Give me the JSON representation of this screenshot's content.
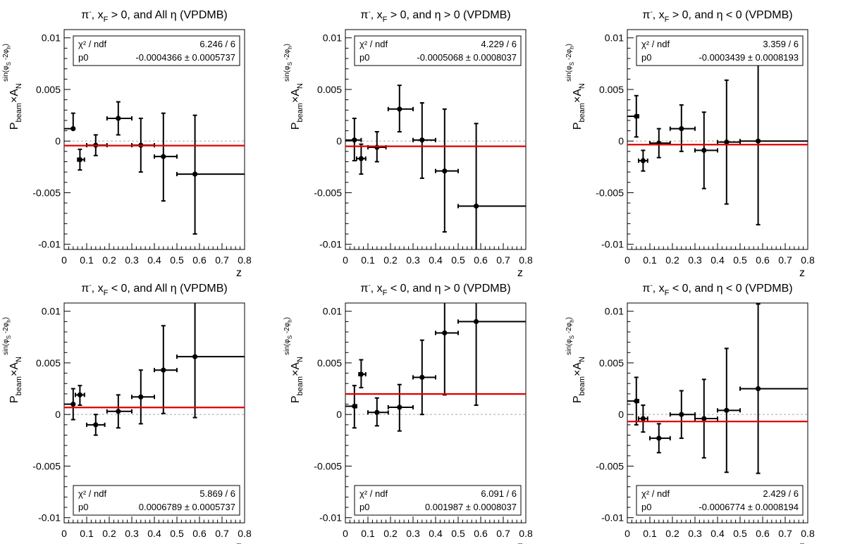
{
  "chart_data": [
    {
      "type": "scatter",
      "title": {
        "particle": "π",
        "charge": "-",
        "xf_var": "x",
        "xf_sub": "F",
        "xf_cond": " > 0, and All η (VPDMB)"
      },
      "xlabel": "z",
      "ylabel": {
        "pre": "P",
        "pre_sub": "beam",
        "mid": "×A",
        "sub": "N",
        "sup": "sin(φ -2φ )",
        "sup_s": "S",
        "sup_h": "h"
      },
      "xlim": [
        0,
        0.8
      ],
      "ylim": [
        -0.0105,
        0.0108
      ],
      "xticks": [
        0,
        0.1,
        0.2,
        0.3,
        0.4,
        0.5,
        0.6,
        0.7,
        0.8
      ],
      "xtick_labels": [
        "0",
        "0.1",
        "0.2",
        "0.3",
        "0.4",
        "0.5",
        "0.6",
        "0.7",
        "0.8"
      ],
      "yticks": [
        -0.01,
        -0.005,
        0,
        0.005,
        0.01
      ],
      "ytick_labels": [
        "-0.01",
        "-0.005",
        "0",
        "0.005",
        "0.01"
      ],
      "points": [
        {
          "x": 0.04,
          "xlo": 0.0,
          "xhi": 0.04,
          "y": 0.0012,
          "ylo": 0.0027,
          "yhi": 0.0012
        },
        {
          "x": 0.07,
          "xlo": 0.06,
          "xhi": 0.09,
          "y": -0.0018,
          "ylo": -0.0028,
          "yhi": -0.0008
        },
        {
          "x": 0.14,
          "xlo": 0.1,
          "xhi": 0.19,
          "y": -0.0004,
          "ylo": -0.0014,
          "yhi": 0.0006
        },
        {
          "x": 0.24,
          "xlo": 0.19,
          "xhi": 0.3,
          "y": 0.0022,
          "ylo": 0.0006,
          "yhi": 0.0038
        },
        {
          "x": 0.34,
          "xlo": 0.3,
          "xhi": 0.4,
          "y": -0.0004,
          "ylo": -0.003,
          "yhi": 0.0022
        },
        {
          "x": 0.44,
          "xlo": 0.4,
          "xhi": 0.5,
          "y": -0.0015,
          "ylo": -0.0058,
          "yhi": 0.0027
        },
        {
          "x": 0.58,
          "xlo": 0.5,
          "xhi": 0.8,
          "y": -0.0032,
          "ylo": -0.009,
          "yhi": 0.0025
        }
      ],
      "fit": {
        "p0": -0.0004366
      },
      "stats": {
        "position": "top",
        "chi2_label": "χ² / ndf",
        "chi2_value": "6.246 / 6",
        "p0_label": "p0",
        "p0_value": "-0.0004366 ± 0.0005737"
      }
    },
    {
      "type": "scatter",
      "title": {
        "particle": "π",
        "charge": "-",
        "xf_var": "x",
        "xf_sub": "F",
        "xf_cond": " > 0, and η > 0 (VPDMB)"
      },
      "xlabel": "z",
      "ylabel": {
        "pre": "P",
        "pre_sub": "beam",
        "mid": "×A",
        "sub": "N",
        "sup": "sin(φ -2φ )",
        "sup_s": "S",
        "sup_h": "h"
      },
      "xlim": [
        0,
        0.8
      ],
      "ylim": [
        -0.0105,
        0.0108
      ],
      "xticks": [
        0,
        0.1,
        0.2,
        0.3,
        0.4,
        0.5,
        0.6,
        0.7,
        0.8
      ],
      "xtick_labels": [
        "0",
        "0.1",
        "0.2",
        "0.3",
        "0.4",
        "0.5",
        "0.6",
        "0.7",
        "0.8"
      ],
      "yticks": [
        -0.01,
        -0.005,
        0,
        0.005,
        0.01
      ],
      "ytick_labels": [
        "-0.01",
        "-0.005",
        "0",
        "0.005",
        "0.01"
      ],
      "points": [
        {
          "x": 0.04,
          "xlo": 0.0,
          "xhi": 0.07,
          "y": 0.0001,
          "ylo": -0.0019,
          "yhi": 0.0022
        },
        {
          "x": 0.07,
          "xlo": 0.05,
          "xhi": 0.09,
          "y": -0.0017,
          "ylo": -0.0032,
          "yhi": -0.0003
        },
        {
          "x": 0.14,
          "xlo": 0.1,
          "xhi": 0.18,
          "y": -0.0006,
          "ylo": -0.002,
          "yhi": 0.0009
        },
        {
          "x": 0.24,
          "xlo": 0.19,
          "xhi": 0.3,
          "y": 0.0031,
          "ylo": 0.0009,
          "yhi": 0.0054
        },
        {
          "x": 0.34,
          "xlo": 0.3,
          "xhi": 0.4,
          "y": 0.0001,
          "ylo": -0.0036,
          "yhi": 0.0037
        },
        {
          "x": 0.44,
          "xlo": 0.4,
          "xhi": 0.5,
          "y": -0.0029,
          "ylo": -0.0088,
          "yhi": 0.0031
        },
        {
          "x": 0.58,
          "xlo": 0.5,
          "xhi": 0.8,
          "y": -0.0063,
          "ylo": -0.0105,
          "yhi": 0.0017
        }
      ],
      "fit": {
        "p0": -0.0005068
      },
      "stats": {
        "position": "top",
        "chi2_label": "χ² / ndf",
        "chi2_value": "4.229 / 6",
        "p0_label": "p0",
        "p0_value": "-0.0005068 ± 0.0008037"
      }
    },
    {
      "type": "scatter",
      "title": {
        "particle": "π",
        "charge": "-",
        "xf_var": "x",
        "xf_sub": "F",
        "xf_cond": " > 0, and η < 0 (VPDMB)"
      },
      "xlabel": "z",
      "ylabel": {
        "pre": "P",
        "pre_sub": "beam",
        "mid": "×A",
        "sub": "N",
        "sup": "sin(φ -2φ )",
        "sup_s": "S",
        "sup_h": "h"
      },
      "xlim": [
        0,
        0.8
      ],
      "ylim": [
        -0.0105,
        0.0108
      ],
      "xticks": [
        0,
        0.1,
        0.2,
        0.3,
        0.4,
        0.5,
        0.6,
        0.7,
        0.8
      ],
      "xtick_labels": [
        "0",
        "0.1",
        "0.2",
        "0.3",
        "0.4",
        "0.5",
        "0.6",
        "0.7",
        "0.8"
      ],
      "yticks": [
        -0.01,
        -0.005,
        0,
        0.005,
        0.01
      ],
      "ytick_labels": [
        "-0.01",
        "-0.005",
        "0",
        "0.005",
        "0.01"
      ],
      "points": [
        {
          "x": 0.04,
          "xlo": 0.0,
          "xhi": 0.05,
          "y": 0.0024,
          "ylo": 0.0004,
          "yhi": 0.0044
        },
        {
          "x": 0.07,
          "xlo": 0.05,
          "xhi": 0.09,
          "y": -0.0019,
          "ylo": -0.0029,
          "yhi": -0.0009
        },
        {
          "x": 0.14,
          "xlo": 0.1,
          "xhi": 0.19,
          "y": -0.0002,
          "ylo": -0.0016,
          "yhi": 0.0012
        },
        {
          "x": 0.24,
          "xlo": 0.19,
          "xhi": 0.3,
          "y": 0.0012,
          "ylo": -0.001,
          "yhi": 0.0035
        },
        {
          "x": 0.34,
          "xlo": 0.3,
          "xhi": 0.4,
          "y": -0.0009,
          "ylo": -0.0046,
          "yhi": 0.0028
        },
        {
          "x": 0.44,
          "xlo": 0.4,
          "xhi": 0.5,
          "y": -0.0001,
          "ylo": -0.0061,
          "yhi": 0.0059
        },
        {
          "x": 0.58,
          "xlo": 0.5,
          "xhi": 0.8,
          "y": 0.0,
          "ylo": -0.0081,
          "yhi": 0.0082
        }
      ],
      "fit": {
        "p0": -0.0003439
      },
      "stats": {
        "position": "top",
        "chi2_label": "χ² / ndf",
        "chi2_value": "3.359 / 6",
        "p0_label": "p0",
        "p0_value": "-0.0003439 ± 0.0008193"
      }
    },
    {
      "type": "scatter",
      "title": {
        "particle": "π",
        "charge": "-",
        "xf_var": "x",
        "xf_sub": "F",
        "xf_cond": " < 0, and All η (VPDMB)"
      },
      "xlabel": "z",
      "ylabel": {
        "pre": "P",
        "pre_sub": "beam",
        "mid": "×A",
        "sub": "N",
        "sup": "sin(φ -2φ )",
        "sup_s": "S",
        "sup_h": "h"
      },
      "xlim": [
        0,
        0.8
      ],
      "ylim": [
        -0.0105,
        0.0108
      ],
      "xticks": [
        0,
        0.1,
        0.2,
        0.3,
        0.4,
        0.5,
        0.6,
        0.7,
        0.8
      ],
      "xtick_labels": [
        "0",
        "0.1",
        "0.2",
        "0.3",
        "0.4",
        "0.5",
        "0.6",
        "0.7",
        "0.8"
      ],
      "yticks": [
        -0.01,
        -0.005,
        0,
        0.005,
        0.01
      ],
      "ytick_labels": [
        "-0.01",
        "-0.005",
        "0",
        "0.005",
        "0.01"
      ],
      "points": [
        {
          "x": 0.04,
          "xlo": 0.0,
          "xhi": 0.04,
          "y": 0.001,
          "ylo": -0.0005,
          "yhi": 0.0025
        },
        {
          "x": 0.07,
          "xlo": 0.05,
          "xhi": 0.09,
          "y": 0.0019,
          "ylo": 0.0009,
          "yhi": 0.0028
        },
        {
          "x": 0.14,
          "xlo": 0.1,
          "xhi": 0.18,
          "y": -0.001,
          "ylo": -0.002,
          "yhi": 0.0
        },
        {
          "x": 0.24,
          "xlo": 0.19,
          "xhi": 0.3,
          "y": 0.0003,
          "ylo": -0.0013,
          "yhi": 0.0019
        },
        {
          "x": 0.34,
          "xlo": 0.3,
          "xhi": 0.4,
          "y": 0.0017,
          "ylo": -0.0009,
          "yhi": 0.0043
        },
        {
          "x": 0.44,
          "xlo": 0.4,
          "xhi": 0.5,
          "y": 0.0043,
          "ylo": 0.0001,
          "yhi": 0.0086
        },
        {
          "x": 0.58,
          "xlo": 0.5,
          "xhi": 0.8,
          "y": 0.0056,
          "ylo": -0.0003,
          "yhi": 0.0108
        }
      ],
      "fit": {
        "p0": 0.0006789
      },
      "stats": {
        "position": "bottom",
        "chi2_label": "χ² / ndf",
        "chi2_value": "5.869 / 6",
        "p0_label": "p0",
        "p0_value": "0.0006789 ± 0.0005737"
      }
    },
    {
      "type": "scatter",
      "title": {
        "particle": "π",
        "charge": "-",
        "xf_var": "x",
        "xf_sub": "F",
        "xf_cond": " < 0, and η > 0 (VPDMB)"
      },
      "xlabel": "z",
      "ylabel": {
        "pre": "P",
        "pre_sub": "beam",
        "mid": "×A",
        "sub": "N",
        "sup": "sin(φ -2φ )",
        "sup_s": "S",
        "sup_h": "h"
      },
      "xlim": [
        0,
        0.8
      ],
      "ylim": [
        -0.0105,
        0.0108
      ],
      "xticks": [
        0,
        0.1,
        0.2,
        0.3,
        0.4,
        0.5,
        0.6,
        0.7,
        0.8
      ],
      "xtick_labels": [
        "0",
        "0.1",
        "0.2",
        "0.3",
        "0.4",
        "0.5",
        "0.6",
        "0.7",
        "0.8"
      ],
      "yticks": [
        -0.01,
        -0.005,
        0,
        0.005,
        0.01
      ],
      "ytick_labels": [
        "-0.01",
        "-0.005",
        "0",
        "0.005",
        "0.01"
      ],
      "points": [
        {
          "x": 0.04,
          "xlo": 0.0,
          "xhi": 0.05,
          "y": 0.0008,
          "ylo": -0.0013,
          "yhi": 0.0028
        },
        {
          "x": 0.07,
          "xlo": 0.06,
          "xhi": 0.09,
          "y": 0.0039,
          "ylo": 0.0026,
          "yhi": 0.0053
        },
        {
          "x": 0.14,
          "xlo": 0.1,
          "xhi": 0.19,
          "y": 0.0002,
          "ylo": -0.0011,
          "yhi": 0.0016
        },
        {
          "x": 0.24,
          "xlo": 0.19,
          "xhi": 0.3,
          "y": 0.0007,
          "ylo": -0.0016,
          "yhi": 0.0029
        },
        {
          "x": 0.34,
          "xlo": 0.3,
          "xhi": 0.4,
          "y": 0.0036,
          "ylo": 0.0,
          "yhi": 0.0072
        },
        {
          "x": 0.44,
          "xlo": 0.4,
          "xhi": 0.5,
          "y": 0.0079,
          "ylo": 0.0019,
          "yhi": 0.0108
        },
        {
          "x": 0.58,
          "xlo": 0.5,
          "xhi": 0.8,
          "y": 0.009,
          "ylo": 0.0009,
          "yhi": 0.0108
        }
      ],
      "fit": {
        "p0": 0.001987
      },
      "stats": {
        "position": "bottom",
        "chi2_label": "χ² / ndf",
        "chi2_value": "6.091 / 6",
        "p0_label": "p0",
        "p0_value": "0.001987 ± 0.0008037"
      }
    },
    {
      "type": "scatter",
      "title": {
        "particle": "π",
        "charge": "-",
        "xf_var": "x",
        "xf_sub": "F",
        "xf_cond": " < 0, and η < 0 (VPDMB)"
      },
      "xlabel": "z",
      "ylabel": {
        "pre": "P",
        "pre_sub": "beam",
        "mid": "×A",
        "sub": "N",
        "sup": "sin(φ -2φ )",
        "sup_s": "S",
        "sup_h": "h"
      },
      "xlim": [
        0,
        0.8
      ],
      "ylim": [
        -0.0105,
        0.0108
      ],
      "xticks": [
        0,
        0.1,
        0.2,
        0.3,
        0.4,
        0.5,
        0.6,
        0.7,
        0.8
      ],
      "xtick_labels": [
        "0",
        "0.1",
        "0.2",
        "0.3",
        "0.4",
        "0.5",
        "0.6",
        "0.7",
        "0.8"
      ],
      "yticks": [
        -0.01,
        -0.005,
        0,
        0.005,
        0.01
      ],
      "ytick_labels": [
        "-0.01",
        "-0.005",
        "0",
        "0.005",
        "0.01"
      ],
      "points": [
        {
          "x": 0.04,
          "xlo": 0.0,
          "xhi": 0.05,
          "y": 0.0013,
          "ylo": -0.001,
          "yhi": 0.0036
        },
        {
          "x": 0.07,
          "xlo": 0.05,
          "xhi": 0.09,
          "y": -0.0004,
          "ylo": -0.0017,
          "yhi": 0.0009
        },
        {
          "x": 0.14,
          "xlo": 0.1,
          "xhi": 0.19,
          "y": -0.0023,
          "ylo": -0.0037,
          "yhi": -0.0009
        },
        {
          "x": 0.24,
          "xlo": 0.19,
          "xhi": 0.3,
          "y": 0.0,
          "ylo": -0.0023,
          "yhi": 0.0023
        },
        {
          "x": 0.34,
          "xlo": 0.3,
          "xhi": 0.4,
          "y": -0.0004,
          "ylo": -0.0042,
          "yhi": 0.0034
        },
        {
          "x": 0.44,
          "xlo": 0.4,
          "xhi": 0.5,
          "y": 0.0004,
          "ylo": -0.0056,
          "yhi": 0.0064
        },
        {
          "x": 0.58,
          "xlo": 0.5,
          "xhi": 0.8,
          "y": 0.0025,
          "ylo": -0.0057,
          "yhi": 0.0107
        }
      ],
      "fit": {
        "p0": -0.0006774
      },
      "stats": {
        "position": "bottom",
        "chi2_label": "χ² / ndf",
        "chi2_value": "2.429 / 6",
        "p0_label": "p0",
        "p0_value": "-0.0006774 ± 0.0008194"
      }
    }
  ],
  "colors": {
    "fit_line": "#e00000",
    "marker": "#000000",
    "zero_line": "#b4b4b4",
    "frame": "#000000"
  }
}
